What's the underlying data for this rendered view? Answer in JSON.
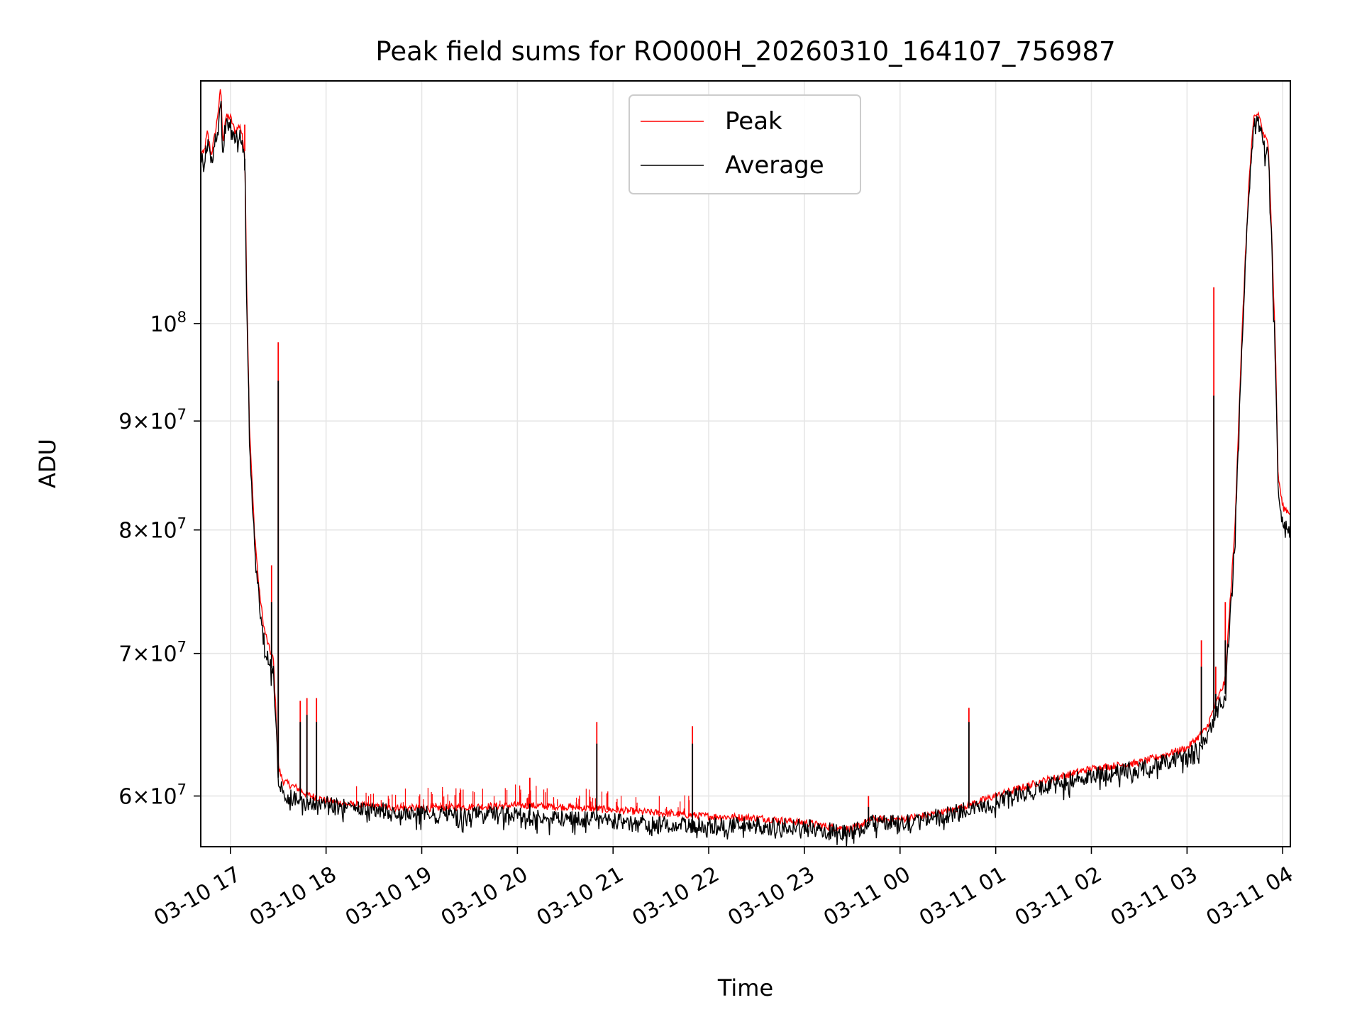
{
  "chart_data": {
    "type": "line",
    "title": "Peak field sums for RO000H_20260310_164107_756987",
    "xlabel": "Time",
    "ylabel": "ADU",
    "yscale": "log",
    "ylim": [
      56800000,
      130000000
    ],
    "xlim_hours": [
      16.69,
      28.08
    ],
    "grid": true,
    "legend_position": "upper-center",
    "colors": {
      "peak": "#ff0000",
      "average": "#000000",
      "grid": "#e6e6e6"
    },
    "x_ticks": [
      {
        "hour": 17,
        "label": "03-10 17"
      },
      {
        "hour": 18,
        "label": "03-10 18"
      },
      {
        "hour": 19,
        "label": "03-10 19"
      },
      {
        "hour": 20,
        "label": "03-10 20"
      },
      {
        "hour": 21,
        "label": "03-10 21"
      },
      {
        "hour": 22,
        "label": "03-10 22"
      },
      {
        "hour": 23,
        "label": "03-10 23"
      },
      {
        "hour": 24,
        "label": "03-11 00"
      },
      {
        "hour": 25,
        "label": "03-11 01"
      },
      {
        "hour": 26,
        "label": "03-11 02"
      },
      {
        "hour": 27,
        "label": "03-11 03"
      },
      {
        "hour": 28,
        "label": "03-11 04"
      }
    ],
    "y_ticks": [
      {
        "value": 60000000,
        "mant": "6",
        "exp": "7"
      },
      {
        "value": 70000000,
        "mant": "7",
        "exp": "7"
      },
      {
        "value": 80000000,
        "mant": "8",
        "exp": "7"
      },
      {
        "value": 90000000,
        "mant": "9",
        "exp": "7"
      },
      {
        "value": 100000000,
        "mant": "",
        "exp": "8"
      }
    ],
    "series": [
      {
        "name": "Peak",
        "x_hours": [
          16.69,
          16.72,
          16.76,
          16.8,
          16.85,
          16.9,
          16.92,
          16.95,
          17.0,
          17.05,
          17.1,
          17.15,
          17.17,
          17.2,
          17.25,
          17.3,
          17.35,
          17.4,
          17.45,
          17.5,
          17.52,
          17.55,
          17.6,
          17.7,
          17.8,
          17.9,
          18.0,
          18.2,
          18.5,
          19.0,
          19.5,
          20.0,
          20.5,
          21.0,
          21.5,
          22.0,
          22.5,
          23.0,
          23.3,
          23.5,
          23.7,
          24.0,
          24.5,
          25.0,
          25.5,
          26.0,
          26.5,
          27.0,
          27.2,
          27.4,
          27.5,
          27.6,
          27.65,
          27.7,
          27.75,
          27.8,
          27.85,
          27.9,
          27.93,
          27.95,
          28.0,
          28.08
        ],
        "values": [
          120500000,
          120000000,
          123000000,
          120000000,
          123500000,
          129000000,
          121500000,
          125000000,
          125000000,
          123000000,
          124000000,
          120500000,
          104000000,
          89000000,
          80000000,
          75000000,
          72000000,
          70500000,
          69500000,
          62000000,
          61500000,
          61000000,
          60800000,
          60500000,
          60100000,
          59900000,
          59700000,
          59500000,
          59300000,
          59200000,
          59300000,
          59400000,
          59300000,
          59100000,
          58900000,
          58700000,
          58600000,
          58300000,
          58000000,
          57900000,
          58500000,
          58500000,
          59000000,
          60000000,
          61000000,
          61800000,
          62200000,
          63200000,
          64500000,
          68000000,
          80000000,
          105000000,
          117000000,
          125000000,
          125500000,
          122500000,
          121500000,
          105000000,
          95000000,
          85000000,
          82000000,
          81500000
        ]
      },
      {
        "name": "Average",
        "x_hours": [
          16.69,
          16.72,
          16.76,
          16.8,
          16.85,
          16.9,
          16.92,
          16.95,
          17.0,
          17.05,
          17.1,
          17.15,
          17.17,
          17.2,
          17.25,
          17.3,
          17.35,
          17.4,
          17.45,
          17.5,
          17.52,
          17.55,
          17.6,
          17.7,
          17.8,
          17.9,
          18.0,
          18.2,
          18.5,
          19.0,
          19.5,
          20.0,
          20.5,
          21.0,
          21.5,
          22.0,
          22.5,
          23.0,
          23.3,
          23.5,
          23.7,
          24.0,
          24.5,
          25.0,
          25.5,
          26.0,
          26.5,
          27.0,
          27.2,
          27.4,
          27.5,
          27.6,
          27.65,
          27.7,
          27.75,
          27.8,
          27.85,
          27.9,
          27.93,
          27.95,
          28.0,
          28.08
        ],
        "values": [
          119500000,
          119000000,
          121500000,
          119000000,
          122500000,
          128000000,
          120500000,
          124000000,
          124000000,
          122000000,
          123000000,
          119500000,
          103000000,
          88000000,
          79000000,
          74000000,
          71000000,
          69500000,
          68500000,
          61200000,
          60700000,
          60300000,
          60000000,
          59800000,
          59700000,
          59600000,
          59500000,
          59300000,
          59100000,
          58900000,
          58800000,
          58800000,
          58600000,
          58400000,
          58200000,
          58100000,
          58200000,
          58000000,
          57800000,
          57700000,
          58300000,
          58300000,
          58800000,
          59700000,
          60600000,
          61400000,
          61800000,
          62600000,
          63800000,
          67000000,
          79000000,
          104000000,
          116000000,
          124000000,
          124500000,
          121000000,
          120000000,
          104000000,
          94000000,
          84000000,
          80500000,
          80000000
        ]
      }
    ],
    "spikes": [
      {
        "hour": 17.15,
        "peak": 124000000,
        "average": 118000000
      },
      {
        "hour": 17.43,
        "peak": 77000000,
        "average": 74000000
      },
      {
        "hour": 17.5,
        "peak": 98000000,
        "average": 94000000
      },
      {
        "hour": 17.73,
        "peak": 66500000,
        "average": 65000000
      },
      {
        "hour": 17.8,
        "peak": 66700000,
        "average": 65500000
      },
      {
        "hour": 17.9,
        "peak": 66700000,
        "average": 65000000
      },
      {
        "hour": 20.13,
        "peak": 61200000,
        "average": 59500000
      },
      {
        "hour": 20.83,
        "peak": 65000000,
        "average": 63500000
      },
      {
        "hour": 21.83,
        "peak": 64700000,
        "average": 63500000
      },
      {
        "hour": 23.67,
        "peak": 60000000,
        "average": 59300000
      },
      {
        "hour": 24.72,
        "peak": 66000000,
        "average": 65000000
      },
      {
        "hour": 27.15,
        "peak": 71000000,
        "average": 69000000
      },
      {
        "hour": 27.28,
        "peak": 104000000,
        "average": 92500000
      },
      {
        "hour": 27.3,
        "peak": 69000000,
        "average": 67000000
      },
      {
        "hour": 27.4,
        "peak": 74000000,
        "average": 71000000
      }
    ]
  }
}
